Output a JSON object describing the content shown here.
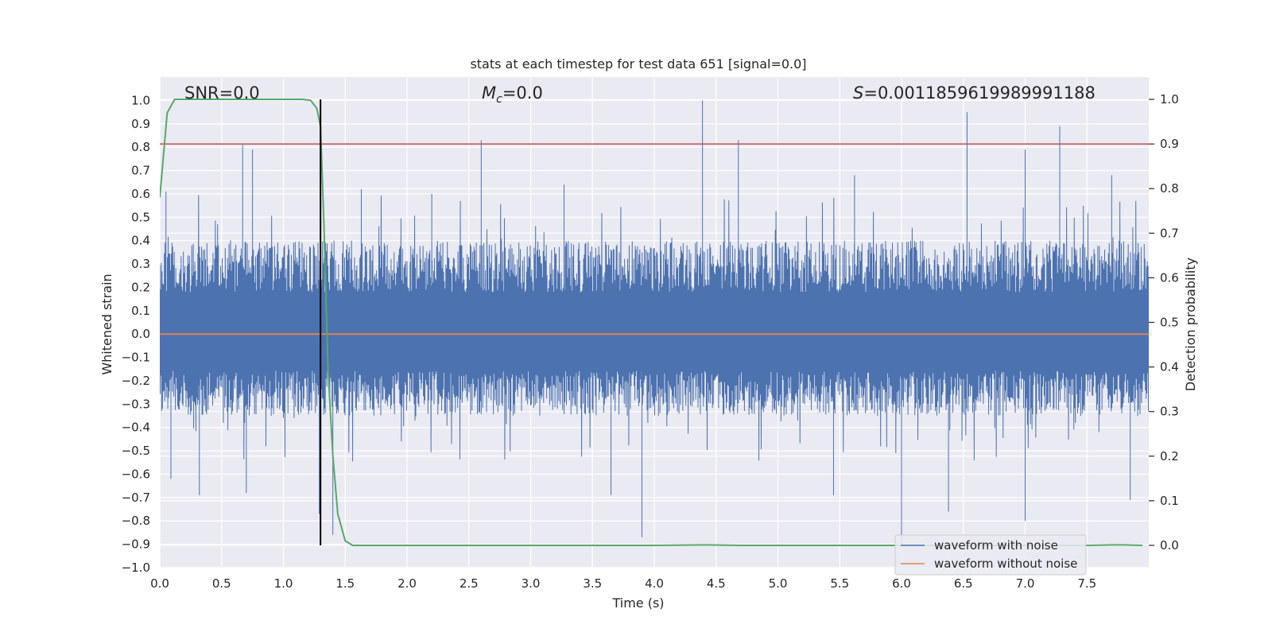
{
  "chart_data": {
    "type": "line",
    "title": "stats at each timestep for test data 651 [signal=0.0]",
    "xlabel": "Time (s)",
    "ylabel_left": "Whitened strain",
    "ylabel_right": "Detection probability",
    "xlim": [
      0.0,
      8.0
    ],
    "ylim_left": [
      -1.0,
      1.1
    ],
    "ylim_right": [
      -0.05,
      1.05
    ],
    "xticks": [
      "0.0",
      "0.5",
      "1.0",
      "1.5",
      "2.0",
      "2.5",
      "3.0",
      "3.5",
      "4.0",
      "4.5",
      "5.0",
      "5.5",
      "6.0",
      "6.5",
      "7.0",
      "7.5"
    ],
    "yticks_left": [
      "1.0",
      "0.9",
      "0.8",
      "0.7",
      "0.6",
      "0.5",
      "0.4",
      "0.3",
      "0.2",
      "0.1",
      "0.0",
      "−0.1",
      "−0.2",
      "−0.3",
      "−0.4",
      "−0.5",
      "−0.6",
      "−0.7",
      "−0.8",
      "−0.9",
      "−1.0"
    ],
    "yticks_right": [
      "1.0",
      "0.9",
      "0.8",
      "0.7",
      "0.6",
      "0.5",
      "0.4",
      "0.3",
      "0.2",
      "0.1",
      "0.0"
    ],
    "annotations": {
      "snr": "SNR=0.0",
      "mc_symbol": "M",
      "mc_sub": "c",
      "mc_value": "=0.0",
      "s_symbol": "S",
      "s_value": "=0.0011859619989991188"
    },
    "legend": {
      "position": "lower-right",
      "entries": [
        "waveform with noise",
        "waveform without noise"
      ]
    },
    "colors": {
      "noise": "#4c72b0",
      "no_noise": "#dd8452",
      "probability": "#55a868",
      "threshold": "#c44e52",
      "marker": "#000000",
      "background": "#eaeaf2",
      "grid": "#ffffff"
    },
    "threshold_probability": 0.9,
    "detection_time_marker": 1.3,
    "noise_envelope": {
      "typical_max": 0.4,
      "typical_min": -0.35
    },
    "noise_peaks": [
      {
        "t": 0.05,
        "v": 0.61
      },
      {
        "t": 0.67,
        "v": 0.81
      },
      {
        "t": 0.75,
        "v": 0.79
      },
      {
        "t": 2.6,
        "v": 0.83
      },
      {
        "t": 4.39,
        "v": 1.0
      },
      {
        "t": 4.68,
        "v": 0.83
      },
      {
        "t": 6.53,
        "v": 0.95
      },
      {
        "t": 7.0,
        "v": 0.79
      },
      {
        "t": 7.28,
        "v": 0.89
      },
      {
        "t": 1.63,
        "v": 0.62
      },
      {
        "t": 2.2,
        "v": 0.6
      },
      {
        "t": 3.27,
        "v": 0.64
      },
      {
        "t": 5.62,
        "v": 0.68
      },
      {
        "t": 7.7,
        "v": 0.68
      }
    ],
    "noise_troughs": [
      {
        "t": 0.09,
        "v": -0.62
      },
      {
        "t": 0.32,
        "v": -0.69
      },
      {
        "t": 0.7,
        "v": -0.68
      },
      {
        "t": 1.29,
        "v": -0.77
      },
      {
        "t": 1.4,
        "v": -0.86
      },
      {
        "t": 3.9,
        "v": -0.87
      },
      {
        "t": 6.0,
        "v": -0.9
      },
      {
        "t": 6.38,
        "v": -0.76
      },
      {
        "t": 7.0,
        "v": -0.8
      },
      {
        "t": 3.65,
        "v": -0.69
      },
      {
        "t": 5.45,
        "v": -0.69
      },
      {
        "t": 7.85,
        "v": -0.71
      }
    ],
    "probability_series": {
      "t": [
        0.0,
        0.06,
        0.12,
        0.2,
        0.4,
        0.8,
        1.0,
        1.15,
        1.22,
        1.27,
        1.3,
        1.33,
        1.36,
        1.4,
        1.44,
        1.5,
        1.56,
        2.0,
        3.0,
        4.0,
        4.4,
        4.7,
        5.0,
        6.0,
        7.0,
        7.5,
        7.7,
        7.8,
        7.95
      ],
      "p": [
        0.78,
        0.97,
        1.0,
        1.0,
        1.0,
        1.0,
        1.0,
        1.0,
        0.998,
        0.98,
        0.94,
        0.7,
        0.4,
        0.2,
        0.07,
        0.01,
        0.0,
        0.0,
        0.0,
        0.0,
        0.001,
        0.0,
        0.0,
        0.0,
        0.0,
        0.0,
        0.001,
        0.001,
        0.0
      ]
    },
    "no_noise_series": {
      "t": [
        0.0,
        8.0
      ],
      "v": [
        0.0,
        0.0
      ]
    }
  }
}
